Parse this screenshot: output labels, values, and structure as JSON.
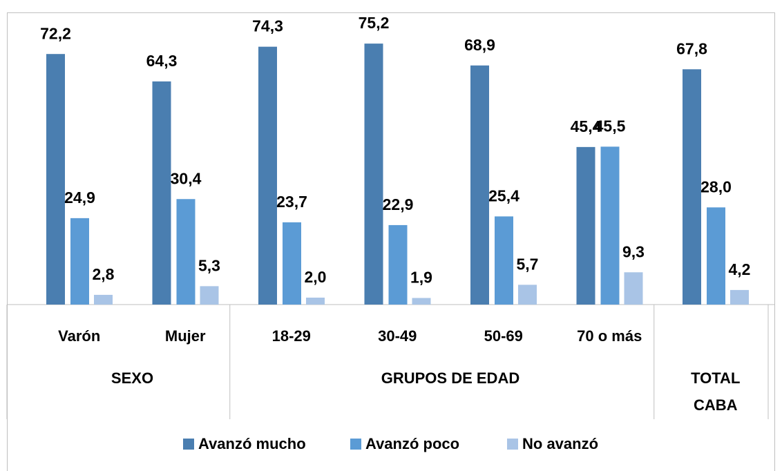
{
  "chart_data": {
    "type": "bar",
    "categories": [
      "Varón",
      "Mujer",
      "18-29",
      "30-49",
      "50-69",
      "70 o más",
      null
    ],
    "groups": [
      {
        "label": "SEXO",
        "count": 2
      },
      {
        "label": "GRUPOS DE EDAD",
        "count": 4
      },
      {
        "label": "TOTAL CABA",
        "count": 1
      }
    ],
    "series": [
      {
        "name": "Avanzó mucho",
        "color": "#4a7eb0",
        "values": [
          72.2,
          64.3,
          74.3,
          75.2,
          68.9,
          45.4,
          67.8
        ],
        "value_labels": [
          "72,2",
          "64,3",
          "74,3",
          "75,2",
          "68,9",
          "45,4",
          "67,8"
        ]
      },
      {
        "name": "Avanzó poco",
        "color": "#5b9bd5",
        "values": [
          24.9,
          30.4,
          23.7,
          22.9,
          25.4,
          45.5,
          28.0
        ],
        "value_labels": [
          "24,9",
          "30,4",
          "23,7",
          "22,9",
          "25,4",
          "45,5",
          "28,0"
        ]
      },
      {
        "name": "No avanzó",
        "color": "#a9c4e6",
        "values": [
          2.8,
          5.3,
          2.0,
          1.9,
          5.7,
          9.3,
          4.2
        ],
        "value_labels": [
          "2,8",
          "5,3",
          "2,0",
          "1,9",
          "5,7",
          "9,3",
          "4,2"
        ]
      }
    ],
    "ylim": [
      0,
      80
    ],
    "legend": "bottom"
  }
}
